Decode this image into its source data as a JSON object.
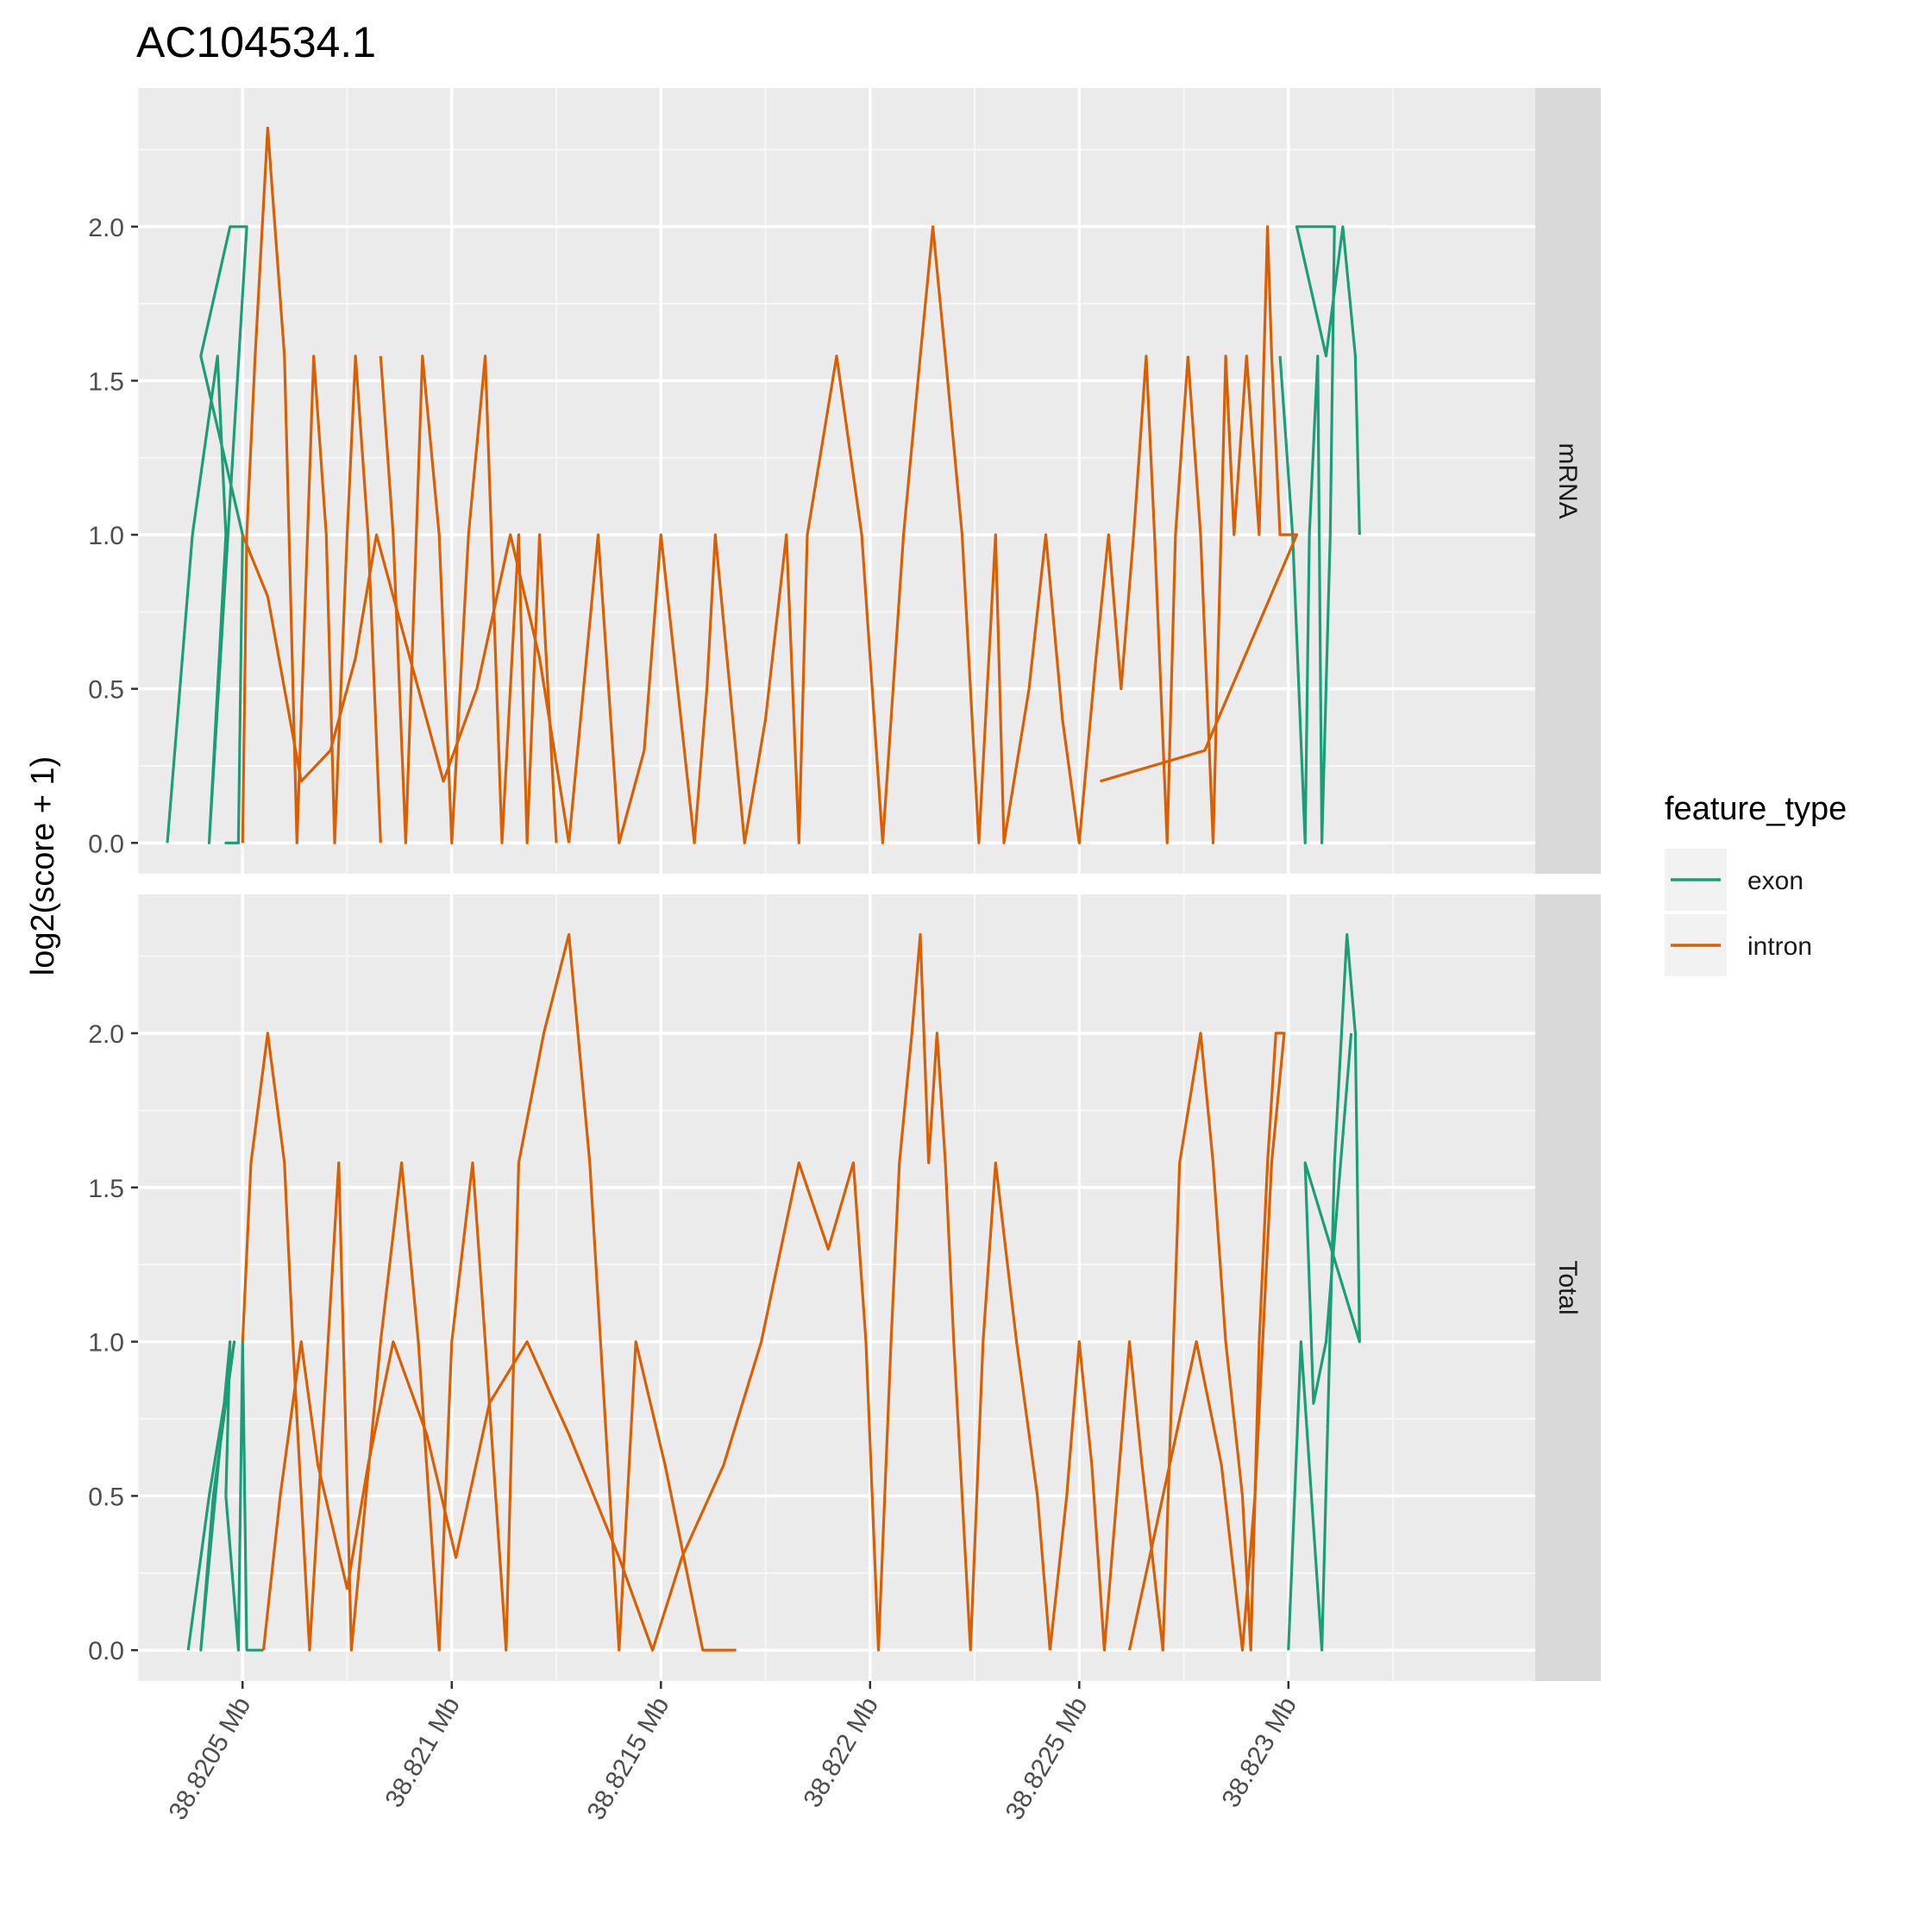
{
  "chart_data": {
    "type": "line",
    "title": "AC104534.1",
    "xlabel": "",
    "ylabel": "log2(score + 1)",
    "x_unit": "Mb",
    "xlim": [
      38.82025,
      38.82359
    ],
    "x_ticks": [
      38.8205,
      38.821,
      38.8215,
      38.822,
      38.8225,
      38.823
    ],
    "x_tick_labels": [
      "38.8205 Mb",
      "38.821 Mb",
      "38.8215 Mb",
      "38.822 Mb",
      "38.8225 Mb",
      "38.823 Mb"
    ],
    "ylim": [
      -0.1,
      2.45
    ],
    "y_ticks": [
      0,
      0.5,
      1,
      1.5,
      2
    ],
    "y_tick_labels": [
      "0.0",
      "0.5",
      "1.0",
      "1.5",
      "2.0"
    ],
    "grid": true,
    "legend": {
      "title": "feature_type",
      "position": "right",
      "entries": [
        {
          "name": "exon",
          "color": "#1b9e77"
        },
        {
          "name": "intron",
          "color": "#d95f02"
        }
      ]
    },
    "panels": [
      {
        "facet": "mRNA",
        "series": [
          {
            "name": "exon",
            "color": "#1b9e77",
            "x": [
              38.82032,
              38.82038,
              38.82044,
              38.82046,
              38.82042,
              38.82051,
              38.82049,
              38.82047,
              38.8204,
              38.8205,
              38.82049,
              38.82046,
              38.82048
            ],
            "y": [
              0,
              1,
              1.58,
              1,
              0,
              2,
              2,
              2,
              1.58,
              1,
              0,
              0,
              0
            ]
          },
          {
            "name": "exon",
            "color": "#1b9e77",
            "x": [
              38.82298,
              38.82301,
              38.82304,
              38.82305,
              38.82307,
              38.82308,
              38.8231,
              38.82311,
              38.82302,
              38.82309,
              38.82313,
              38.82316,
              38.82317
            ],
            "y": [
              1.58,
              1,
              0,
              1,
              1.58,
              0,
              1,
              2,
              2,
              1.58,
              2,
              1.58,
              1
            ]
          },
          {
            "name": "intron",
            "color": "#d95f02",
            "x": [
              38.8205,
              38.82051,
              38.82053,
              38.82056,
              38.8206,
              38.82063,
              38.82067,
              38.8207,
              38.82072,
              38.82075,
              38.82077,
              38.8208,
              38.82083
            ],
            "y": [
              0,
              1,
              1.58,
              2.32,
              1.58,
              0,
              1.58,
              1,
              0,
              1,
              1.58,
              1,
              0
            ]
          },
          {
            "name": "intron",
            "color": "#d95f02",
            "x": [
              38.82083,
              38.82086,
              38.82089,
              38.82093,
              38.82097,
              38.821,
              38.82104,
              38.82108,
              38.82112,
              38.82116,
              38.82118,
              38.82121,
              38.82125
            ],
            "y": [
              1.58,
              1,
              0,
              1.58,
              1,
              0,
              1,
              1.58,
              0,
              1,
              0,
              1,
              0
            ]
          },
          {
            "name": "intron",
            "color": "#d95f02",
            "x": [
              38.8205,
              38.82056,
              38.8206,
              38.82064,
              38.82071,
              38.82077,
              38.82082,
              38.8209,
              38.82098,
              38.82106,
              38.82114,
              38.82121,
              38.82128
            ],
            "y": [
              1,
              0.8,
              0.5,
              0.2,
              0.3,
              0.6,
              1,
              0.6,
              0.2,
              0.5,
              1,
              0.6,
              0
            ]
          },
          {
            "name": "intron",
            "color": "#d95f02",
            "x": [
              38.82128,
              38.82135,
              38.8214,
              38.82146,
              38.8215,
              38.82158,
              38.82161,
              38.82163,
              38.8217,
              38.82175,
              38.8218,
              38.82183,
              38.82185
            ],
            "y": [
              0,
              1,
              0,
              0.3,
              1,
              0,
              0.5,
              1,
              0,
              0.4,
              1,
              0,
              1
            ]
          },
          {
            "name": "intron",
            "color": "#d95f02",
            "x": [
              38.82185,
              38.82192,
              38.82198,
              38.82203,
              38.82208,
              38.82212,
              38.82215,
              38.82218,
              38.82222,
              38.82226,
              38.8223,
              38.82232,
              38.82238
            ],
            "y": [
              1,
              1.58,
              1,
              0,
              1,
              1.58,
              2,
              1.58,
              1,
              0,
              1,
              0,
              0.5
            ]
          },
          {
            "name": "intron",
            "color": "#d95f02",
            "x": [
              38.82238,
              38.82242,
              38.82246,
              38.8225,
              38.82254,
              38.82257,
              38.8226,
              38.82263,
              38.82266,
              38.82268,
              38.82271,
              38.82273,
              38.82276
            ],
            "y": [
              0.5,
              1,
              0.4,
              0,
              0.6,
              1,
              0.5,
              1,
              1.58,
              1,
              0,
              1,
              1.58
            ]
          },
          {
            "name": "intron",
            "color": "#d95f02",
            "x": [
              38.82276,
              38.82279,
              38.82282,
              38.82285,
              38.82287,
              38.8229,
              38.82293,
              38.82295,
              38.82296,
              38.82298,
              38.82302,
              38.8228,
              38.82255
            ],
            "y": [
              1.58,
              1,
              0,
              1.58,
              1,
              1.58,
              1,
              2,
              1.58,
              1,
              1,
              0.3,
              0.2
            ]
          }
        ]
      },
      {
        "facet": "Total",
        "series": [
          {
            "name": "exon",
            "color": "#1b9e77",
            "x": [
              38.82037,
              38.82042,
              38.82048,
              38.82043,
              38.8204,
              38.82047,
              38.82046,
              38.82049,
              38.8205,
              38.82051,
              38.82055
            ],
            "y": [
              0,
              0.5,
              1,
              0.5,
              0,
              1,
              0.5,
              0,
              1,
              0,
              0
            ]
          },
          {
            "name": "exon",
            "color": "#1b9e77",
            "x": [
              38.823,
              38.82303,
              38.82308,
              38.82311,
              38.82314,
              38.82316,
              38.82317,
              38.82304,
              38.82306,
              38.82309,
              38.82315
            ],
            "y": [
              0,
              1,
              0,
              1.58,
              2.32,
              2,
              1,
              1.58,
              0.8,
              1,
              2
            ]
          },
          {
            "name": "intron",
            "color": "#d95f02",
            "x": [
              38.8205,
              38.82052,
              38.82056,
              38.8206,
              38.82062,
              38.82066,
              38.82073,
              38.82076,
              38.82083,
              38.82088,
              38.82092,
              38.82097,
              38.821
            ],
            "y": [
              1,
              1.58,
              2,
              1.58,
              1,
              0,
              1.58,
              0,
              1,
              1.58,
              1,
              0,
              1
            ]
          },
          {
            "name": "intron",
            "color": "#d95f02",
            "x": [
              38.821,
              38.82105,
              38.82108,
              38.82113,
              38.82116,
              38.82122,
              38.82128,
              38.82133,
              38.8214,
              38.82144,
              38.82151,
              38.8216,
              38.82168
            ],
            "y": [
              1,
              1.58,
              1,
              0,
              1.58,
              2,
              2.32,
              1.58,
              0,
              1,
              0.6,
              0,
              0
            ]
          },
          {
            "name": "intron",
            "color": "#d95f02",
            "x": [
              38.82055,
              38.82059,
              38.82064,
              38.82068,
              38.82075,
              38.8208,
              38.82086,
              38.82094,
              38.82101,
              38.82109,
              38.82118,
              38.82128,
              38.8214
            ],
            "y": [
              0,
              0.5,
              1,
              0.6,
              0.2,
              0.6,
              1,
              0.7,
              0.3,
              0.8,
              1,
              0.7,
              0.3
            ]
          },
          {
            "name": "intron",
            "color": "#d95f02",
            "x": [
              38.8214,
              38.82148,
              38.82155,
              38.82165,
              38.82174,
              38.82183,
              38.8219,
              38.82196,
              38.82199,
              38.82202,
              38.82205,
              38.82207,
              38.8221
            ],
            "y": [
              0.3,
              0,
              0.3,
              0.6,
              1,
              1.58,
              1.3,
              1.58,
              1,
              0,
              1,
              1.58,
              2
            ]
          },
          {
            "name": "intron",
            "color": "#d95f02",
            "x": [
              38.8221,
              38.82212,
              38.82214,
              38.82216,
              38.82218,
              38.8222,
              38.82222,
              38.82224,
              38.82227,
              38.8223,
              38.82235,
              38.8224,
              38.82243
            ],
            "y": [
              2,
              2.32,
              1.58,
              2,
              1.58,
              1,
              0.5,
              0,
              1,
              1.58,
              1,
              0.5,
              0
            ]
          },
          {
            "name": "intron",
            "color": "#d95f02",
            "x": [
              38.82243,
              38.82247,
              38.8225,
              38.82253,
              38.82256,
              38.82262,
              38.82265,
              38.8227,
              38.82274,
              38.82279,
              38.82282,
              38.82285,
              38.82289
            ],
            "y": [
              0,
              0.5,
              1,
              0.6,
              0,
              1,
              0.6,
              0,
              1.58,
              2,
              1.58,
              1,
              0.5
            ]
          },
          {
            "name": "intron",
            "color": "#d95f02",
            "x": [
              38.82289,
              38.82291,
              38.82293,
              38.82295,
              38.82297,
              38.82299,
              38.82296,
              38.82292,
              38.82289,
              38.82284,
              38.82278,
              38.8227,
              38.82262
            ],
            "y": [
              0.5,
              0,
              1,
              1.58,
              2,
              2,
              1.58,
              0.5,
              0,
              0.6,
              1,
              0.5,
              0
            ]
          }
        ]
      }
    ]
  }
}
